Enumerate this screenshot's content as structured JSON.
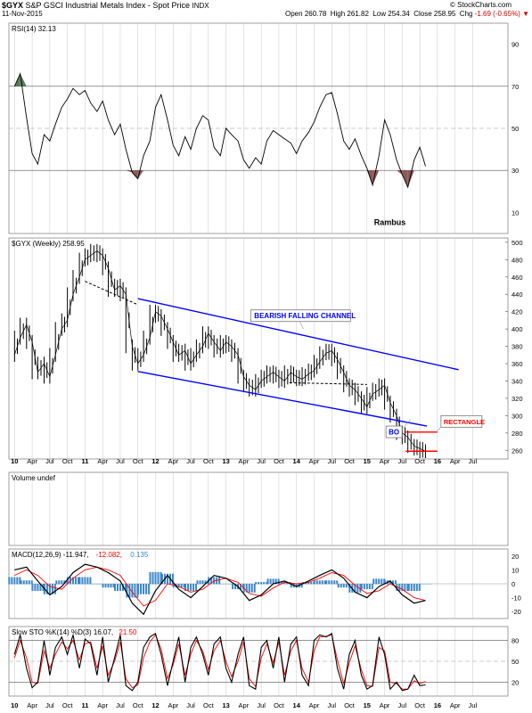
{
  "header": {
    "symbol": "$GYX",
    "description": "S&P GSCI Industrial Metals Index - Spot Price",
    "exchange": "INDX",
    "date": "11-Nov-2015",
    "open_label": "Open",
    "open": "260.78",
    "high_label": "High",
    "high": "261.82",
    "low_label": "Low",
    "low": "254.34",
    "close_label": "Close",
    "close": "258.95",
    "chg_label": "Chg",
    "chg": "-1.69 (-0.65%)",
    "chg_arrow": "▼",
    "credit": "© StockCharts.com"
  },
  "colors": {
    "price": "#000000",
    "channel": "#0000ff",
    "support": "#ff0000",
    "ma": "#ff0000",
    "histogram": "#3a86c8",
    "rsi_overbought_fill": "#5a7a5a",
    "rsi_oversold_fill": "#8b5a5a",
    "grid": "#bbbbbb"
  },
  "x_axis": {
    "labels": [
      "10",
      "Apr",
      "Jul",
      "Oct",
      "11",
      "Apr",
      "Jul",
      "Oct",
      "12",
      "Apr",
      "Jul",
      "Oct",
      "13",
      "Apr",
      "Jul",
      "Oct",
      "14",
      "Apr",
      "Jul",
      "Oct",
      "15",
      "Apr",
      "Jul",
      "Oct",
      "16",
      "Apr",
      "Jul"
    ],
    "bold_labels": [
      "10",
      "11",
      "12",
      "13",
      "14",
      "15",
      "16"
    ]
  },
  "chart_data": [
    {
      "type": "line",
      "panel": "rsi",
      "legend": "RSI(14) 32.13",
      "ylim": [
        0,
        100
      ],
      "y_ticks": [
        10,
        30,
        50,
        70,
        90
      ],
      "reference_lines": [
        30,
        50,
        70
      ],
      "annotation": "Rambus",
      "x": [
        2010.0,
        2010.08,
        2010.17,
        2010.25,
        2010.33,
        2010.42,
        2010.5,
        2010.58,
        2010.67,
        2010.75,
        2010.83,
        2010.92,
        2011.0,
        2011.08,
        2011.17,
        2011.25,
        2011.33,
        2011.42,
        2011.5,
        2011.58,
        2011.67,
        2011.75,
        2011.83,
        2011.92,
        2012.0,
        2012.08,
        2012.17,
        2012.25,
        2012.33,
        2012.42,
        2012.5,
        2012.58,
        2012.67,
        2012.75,
        2012.83,
        2012.92,
        2013.0,
        2013.08,
        2013.17,
        2013.25,
        2013.33,
        2013.42,
        2013.5,
        2013.58,
        2013.67,
        2013.75,
        2013.83,
        2013.92,
        2014.0,
        2014.08,
        2014.17,
        2014.25,
        2014.33,
        2014.42,
        2014.5,
        2014.58,
        2014.67,
        2014.75,
        2014.83,
        2014.92,
        2015.0,
        2015.08,
        2015.17,
        2015.25,
        2015.33,
        2015.42,
        2015.5,
        2015.58,
        2015.67,
        2015.75,
        2015.83
      ],
      "values": [
        70,
        76,
        55,
        38,
        33,
        47,
        44,
        52,
        60,
        64,
        69,
        66,
        68,
        62,
        58,
        63,
        54,
        47,
        52,
        40,
        29,
        26,
        37,
        44,
        60,
        66,
        54,
        42,
        37,
        46,
        40,
        50,
        56,
        54,
        41,
        37,
        50,
        47,
        44,
        35,
        31,
        36,
        33,
        44,
        49,
        47,
        45,
        43,
        38,
        44,
        48,
        53,
        60,
        66,
        67,
        57,
        44,
        40,
        45,
        37,
        31,
        23,
        37,
        54,
        47,
        35,
        28,
        22,
        35,
        41,
        32
      ]
    },
    {
      "type": "line",
      "panel": "price",
      "legend": "$GYX (Weekly) 258.95",
      "ylim": [
        250,
        505
      ],
      "y_ticks": [
        260,
        280,
        300,
        320,
        340,
        360,
        380,
        400,
        420,
        440,
        460,
        480,
        500
      ],
      "x": [
        2010.0,
        2010.08,
        2010.17,
        2010.25,
        2010.33,
        2010.42,
        2010.5,
        2010.58,
        2010.67,
        2010.75,
        2010.83,
        2010.92,
        2011.0,
        2011.08,
        2011.17,
        2011.25,
        2011.33,
        2011.42,
        2011.5,
        2011.58,
        2011.67,
        2011.75,
        2011.83,
        2011.92,
        2012.0,
        2012.08,
        2012.17,
        2012.25,
        2012.33,
        2012.42,
        2012.5,
        2012.58,
        2012.67,
        2012.75,
        2012.83,
        2012.92,
        2013.0,
        2013.08,
        2013.17,
        2013.25,
        2013.33,
        2013.42,
        2013.5,
        2013.58,
        2013.67,
        2013.75,
        2013.83,
        2013.92,
        2014.0,
        2014.08,
        2014.17,
        2014.25,
        2014.33,
        2014.42,
        2014.5,
        2014.58,
        2014.67,
        2014.75,
        2014.83,
        2014.92,
        2015.0,
        2015.08,
        2015.17,
        2015.25,
        2015.33,
        2015.42,
        2015.5,
        2015.58,
        2015.67,
        2015.75,
        2015.83
      ],
      "values": [
        370,
        390,
        405,
        385,
        350,
        360,
        345,
        370,
        400,
        410,
        440,
        460,
        480,
        485,
        490,
        485,
        470,
        445,
        450,
        440,
        380,
        360,
        370,
        390,
        420,
        415,
        400,
        385,
        370,
        375,
        360,
        370,
        380,
        395,
        385,
        375,
        385,
        380,
        370,
        345,
        335,
        330,
        340,
        345,
        350,
        345,
        340,
        350,
        345,
        342,
        348,
        352,
        362,
        372,
        375,
        365,
        350,
        335,
        330,
        320,
        310,
        325,
        330,
        335,
        315,
        300,
        280,
        275,
        265,
        262,
        259
      ],
      "annotations": [
        {
          "text": "BEARISH FALLING CHANNEL",
          "color": "#0000ff"
        },
        {
          "text": "BO",
          "color": "#0000ff"
        },
        {
          "text": "RECTANGLE",
          "color": "#ff0000"
        }
      ]
    },
    {
      "type": "area",
      "panel": "volume",
      "legend": "Volume undef"
    },
    {
      "type": "line",
      "panel": "macd",
      "legend_parts": [
        {
          "text": "MACD(12,26,9) -11.947,",
          "color": "#000000"
        },
        {
          "text": " -12.082,",
          "color": "#ff0000"
        },
        {
          "text": " 0.135",
          "color": "#3a86c8"
        }
      ],
      "ylim": [
        -25,
        25
      ],
      "y_ticks": [
        -20,
        -10,
        0,
        10,
        20
      ],
      "x": [
        2010.0,
        2010.17,
        2010.33,
        2010.5,
        2010.67,
        2010.83,
        2011.0,
        2011.17,
        2011.33,
        2011.5,
        2011.67,
        2011.83,
        2012.0,
        2012.17,
        2012.33,
        2012.5,
        2012.67,
        2012.83,
        2013.0,
        2013.17,
        2013.33,
        2013.5,
        2013.67,
        2013.83,
        2014.0,
        2014.17,
        2014.33,
        2014.5,
        2014.67,
        2014.83,
        2015.0,
        2015.17,
        2015.33,
        2015.5,
        2015.67,
        2015.83
      ],
      "series": [
        {
          "values": [
            10,
            12,
            2,
            -8,
            -2,
            8,
            14,
            12,
            8,
            2,
            -14,
            -22,
            -5,
            6,
            -4,
            -10,
            -2,
            6,
            4,
            -2,
            -12,
            -8,
            0,
            2,
            -2,
            2,
            6,
            10,
            4,
            -6,
            -10,
            -2,
            2,
            -8,
            -14,
            -12
          ]
        },
        {
          "values": [
            6,
            10,
            6,
            -2,
            -4,
            4,
            10,
            12,
            10,
            6,
            -6,
            -16,
            -12,
            0,
            -2,
            -6,
            -4,
            2,
            4,
            1,
            -7,
            -9,
            -3,
            1,
            0,
            1,
            4,
            8,
            6,
            -1,
            -7,
            -5,
            0,
            -4,
            -10,
            -12
          ]
        }
      ]
    },
    {
      "type": "line",
      "panel": "stochastic",
      "legend_parts": [
        {
          "text": "Slow STO %K(14) %D(3) 16.07,",
          "color": "#000000"
        },
        {
          "text": " 21.50",
          "color": "#ff0000"
        }
      ],
      "ylim": [
        0,
        100
      ],
      "y_ticks": [
        20,
        50,
        80
      ],
      "reference_lines": [
        20,
        50,
        80
      ],
      "x": [
        2010.0,
        2010.08,
        2010.17,
        2010.25,
        2010.33,
        2010.42,
        2010.5,
        2010.58,
        2010.67,
        2010.75,
        2010.83,
        2010.92,
        2011.0,
        2011.08,
        2011.17,
        2011.25,
        2011.33,
        2011.42,
        2011.5,
        2011.58,
        2011.67,
        2011.75,
        2011.83,
        2011.92,
        2012.0,
        2012.08,
        2012.17,
        2012.25,
        2012.33,
        2012.42,
        2012.5,
        2012.58,
        2012.67,
        2012.75,
        2012.83,
        2012.92,
        2013.0,
        2013.08,
        2013.17,
        2013.25,
        2013.33,
        2013.42,
        2013.5,
        2013.58,
        2013.67,
        2013.75,
        2013.83,
        2013.92,
        2014.0,
        2014.08,
        2014.17,
        2014.25,
        2014.33,
        2014.42,
        2014.5,
        2014.58,
        2014.67,
        2014.75,
        2014.83,
        2014.92,
        2015.0,
        2015.08,
        2015.17,
        2015.25,
        2015.33,
        2015.42,
        2015.5,
        2015.58,
        2015.67,
        2015.75,
        2015.83
      ],
      "series": [
        {
          "values": [
            60,
            88,
            40,
            12,
            20,
            80,
            30,
            70,
            85,
            60,
            88,
            40,
            82,
            75,
            30,
            85,
            20,
            55,
            88,
            15,
            8,
            20,
            70,
            85,
            90,
            60,
            15,
            50,
            85,
            20,
            70,
            85,
            60,
            30,
            75,
            85,
            40,
            20,
            60,
            85,
            15,
            10,
            70,
            80,
            40,
            85,
            20,
            75,
            85,
            30,
            15,
            80,
            88,
            85,
            90,
            40,
            10,
            60,
            80,
            30,
            10,
            15,
            85,
            60,
            10,
            20,
            8,
            10,
            30,
            15,
            16
          ]
        },
        {
          "values": [
            55,
            80,
            55,
            20,
            18,
            65,
            40,
            60,
            78,
            68,
            80,
            52,
            75,
            78,
            40,
            72,
            30,
            50,
            78,
            25,
            12,
            16,
            55,
            78,
            88,
            68,
            25,
            45,
            75,
            30,
            60,
            80,
            65,
            38,
            65,
            80,
            50,
            28,
            50,
            78,
            25,
            14,
            55,
            75,
            48,
            78,
            30,
            65,
            80,
            40,
            20,
            65,
            85,
            86,
            88,
            52,
            18,
            48,
            72,
            38,
            15,
            14,
            70,
            65,
            20,
            18,
            10,
            10,
            22,
            18,
            21
          ]
        }
      ]
    }
  ]
}
